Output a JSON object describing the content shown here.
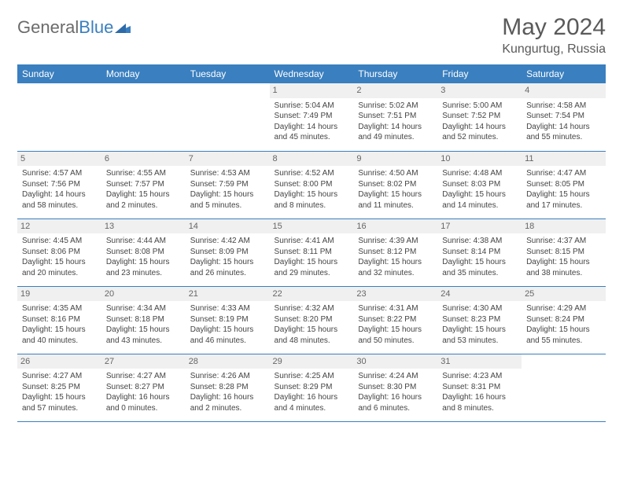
{
  "brand": {
    "part1": "General",
    "part2": "Blue"
  },
  "title": "May 2024",
  "location": "Kungurtug, Russia",
  "colors": {
    "header_bg": "#3a7fbf",
    "header_fg": "#ffffff",
    "daynum_bg": "#f0f0f0",
    "border": "#3a7fbf",
    "text": "#444444"
  },
  "weekdays": [
    "Sunday",
    "Monday",
    "Tuesday",
    "Wednesday",
    "Thursday",
    "Friday",
    "Saturday"
  ],
  "weeks": [
    [
      null,
      null,
      null,
      {
        "n": "1",
        "rise": "5:04 AM",
        "set": "7:49 PM",
        "dl": "14 hours and 45 minutes."
      },
      {
        "n": "2",
        "rise": "5:02 AM",
        "set": "7:51 PM",
        "dl": "14 hours and 49 minutes."
      },
      {
        "n": "3",
        "rise": "5:00 AM",
        "set": "7:52 PM",
        "dl": "14 hours and 52 minutes."
      },
      {
        "n": "4",
        "rise": "4:58 AM",
        "set": "7:54 PM",
        "dl": "14 hours and 55 minutes."
      }
    ],
    [
      {
        "n": "5",
        "rise": "4:57 AM",
        "set": "7:56 PM",
        "dl": "14 hours and 58 minutes."
      },
      {
        "n": "6",
        "rise": "4:55 AM",
        "set": "7:57 PM",
        "dl": "15 hours and 2 minutes."
      },
      {
        "n": "7",
        "rise": "4:53 AM",
        "set": "7:59 PM",
        "dl": "15 hours and 5 minutes."
      },
      {
        "n": "8",
        "rise": "4:52 AM",
        "set": "8:00 PM",
        "dl": "15 hours and 8 minutes."
      },
      {
        "n": "9",
        "rise": "4:50 AM",
        "set": "8:02 PM",
        "dl": "15 hours and 11 minutes."
      },
      {
        "n": "10",
        "rise": "4:48 AM",
        "set": "8:03 PM",
        "dl": "15 hours and 14 minutes."
      },
      {
        "n": "11",
        "rise": "4:47 AM",
        "set": "8:05 PM",
        "dl": "15 hours and 17 minutes."
      }
    ],
    [
      {
        "n": "12",
        "rise": "4:45 AM",
        "set": "8:06 PM",
        "dl": "15 hours and 20 minutes."
      },
      {
        "n": "13",
        "rise": "4:44 AM",
        "set": "8:08 PM",
        "dl": "15 hours and 23 minutes."
      },
      {
        "n": "14",
        "rise": "4:42 AM",
        "set": "8:09 PM",
        "dl": "15 hours and 26 minutes."
      },
      {
        "n": "15",
        "rise": "4:41 AM",
        "set": "8:11 PM",
        "dl": "15 hours and 29 minutes."
      },
      {
        "n": "16",
        "rise": "4:39 AM",
        "set": "8:12 PM",
        "dl": "15 hours and 32 minutes."
      },
      {
        "n": "17",
        "rise": "4:38 AM",
        "set": "8:14 PM",
        "dl": "15 hours and 35 minutes."
      },
      {
        "n": "18",
        "rise": "4:37 AM",
        "set": "8:15 PM",
        "dl": "15 hours and 38 minutes."
      }
    ],
    [
      {
        "n": "19",
        "rise": "4:35 AM",
        "set": "8:16 PM",
        "dl": "15 hours and 40 minutes."
      },
      {
        "n": "20",
        "rise": "4:34 AM",
        "set": "8:18 PM",
        "dl": "15 hours and 43 minutes."
      },
      {
        "n": "21",
        "rise": "4:33 AM",
        "set": "8:19 PM",
        "dl": "15 hours and 46 minutes."
      },
      {
        "n": "22",
        "rise": "4:32 AM",
        "set": "8:20 PM",
        "dl": "15 hours and 48 minutes."
      },
      {
        "n": "23",
        "rise": "4:31 AM",
        "set": "8:22 PM",
        "dl": "15 hours and 50 minutes."
      },
      {
        "n": "24",
        "rise": "4:30 AM",
        "set": "8:23 PM",
        "dl": "15 hours and 53 minutes."
      },
      {
        "n": "25",
        "rise": "4:29 AM",
        "set": "8:24 PM",
        "dl": "15 hours and 55 minutes."
      }
    ],
    [
      {
        "n": "26",
        "rise": "4:27 AM",
        "set": "8:25 PM",
        "dl": "15 hours and 57 minutes."
      },
      {
        "n": "27",
        "rise": "4:27 AM",
        "set": "8:27 PM",
        "dl": "16 hours and 0 minutes."
      },
      {
        "n": "28",
        "rise": "4:26 AM",
        "set": "8:28 PM",
        "dl": "16 hours and 2 minutes."
      },
      {
        "n": "29",
        "rise": "4:25 AM",
        "set": "8:29 PM",
        "dl": "16 hours and 4 minutes."
      },
      {
        "n": "30",
        "rise": "4:24 AM",
        "set": "8:30 PM",
        "dl": "16 hours and 6 minutes."
      },
      {
        "n": "31",
        "rise": "4:23 AM",
        "set": "8:31 PM",
        "dl": "16 hours and 8 minutes."
      },
      null
    ]
  ],
  "labels": {
    "sunrise": "Sunrise:",
    "sunset": "Sunset:",
    "daylight": "Daylight:"
  }
}
